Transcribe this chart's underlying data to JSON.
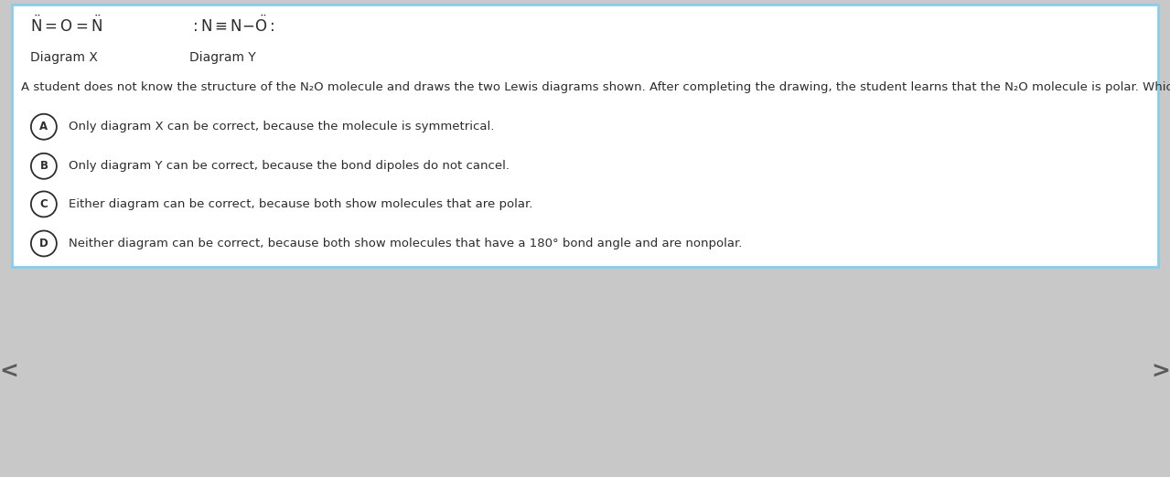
{
  "bg_color": "#ffffff",
  "border_color": "#87CEEB",
  "border_linewidth": 2.0,
  "outer_bg": "#c8c8c8",
  "fig_width": 12.79,
  "fig_height": 5.22,
  "diagram_x_label": "Diagram X",
  "diagram_y_label": "Diagram Y",
  "question_text": "A student does not know the structure of the N₂O molecule and draws the two Lewis diagrams shown. After completing the drawing, the student learns that the N₂O molecule is polar. Which of the following claims is consistent with this new information?",
  "choices": [
    {
      "letter": "A",
      "text": "Only diagram X can be correct, because the molecule is symmetrical."
    },
    {
      "letter": "B",
      "text": "Only diagram Y can be correct, because the bond dipoles do not cancel."
    },
    {
      "letter": "C",
      "text": "Either diagram can be correct, because both show molecules that are polar."
    },
    {
      "letter": "D",
      "text": "Neither diagram can be correct, because both show molecules that have a 180° bond angle and are nonpolar."
    }
  ],
  "text_color": "#2c2c2c",
  "circle_color": "#2c2c2c",
  "formula_fontsize": 11,
  "label_fontsize": 10,
  "question_fontsize": 9.5,
  "choice_fontsize": 9.5,
  "nav_arrow_color": "#5a5a5a"
}
